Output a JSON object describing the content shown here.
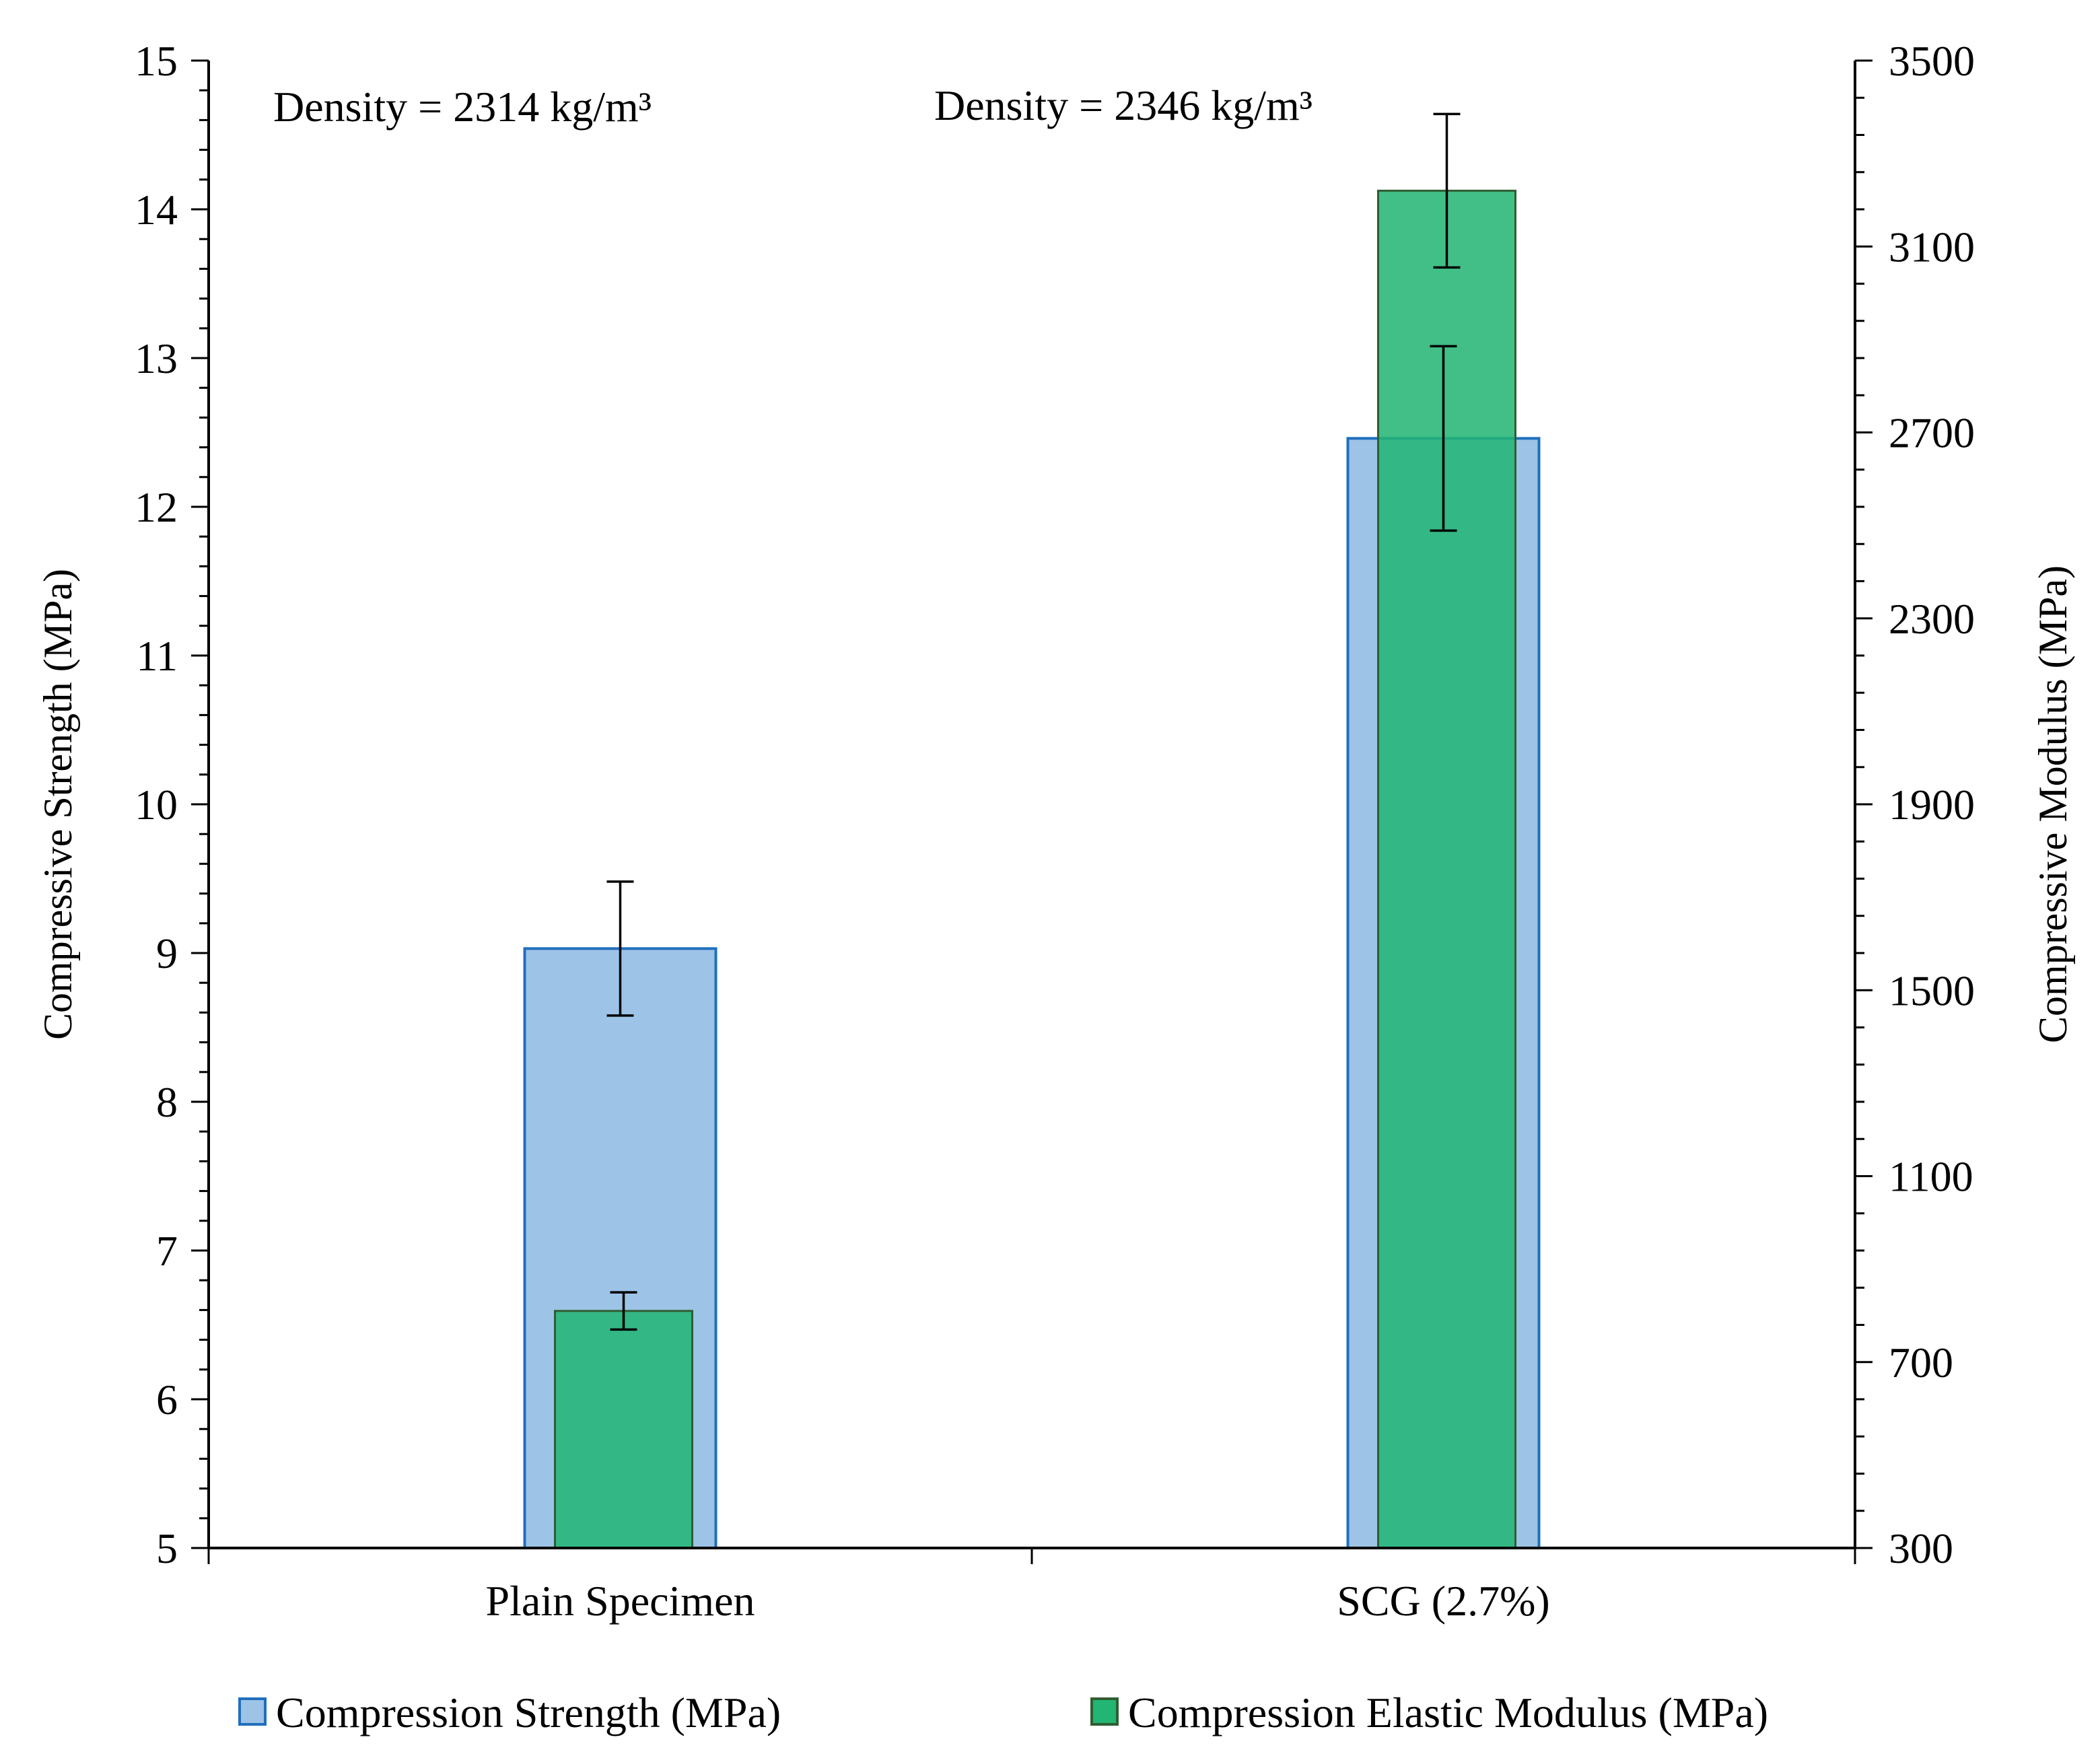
{
  "chart_data": {
    "type": "bar",
    "categories": [
      "Plain Specimen",
      "SCG (2.7%)"
    ],
    "y_left": {
      "label": "Compressive Strength (MPa)",
      "min": 5,
      "max": 15,
      "major_step": 1,
      "minor_step": 0.2,
      "tick_labels": [
        "5",
        "6",
        "7",
        "8",
        "9",
        "10",
        "11",
        "12",
        "13",
        "14",
        "15"
      ]
    },
    "y_right": {
      "label": "Compressive Modulus (MPa)",
      "min": 300,
      "max": 3500,
      "major_step": 400,
      "minor_step": 80,
      "tick_labels": [
        "300",
        "700",
        "1100",
        "1500",
        "1900",
        "2300",
        "2700",
        "3100",
        "3500"
      ]
    },
    "series": [
      {
        "name": "Compression Strength (MPa)",
        "axis": "left",
        "values": [
          9.03,
          12.46
        ],
        "error": [
          0.45,
          0.62
        ],
        "fill": "#9dc3e6",
        "stroke": "#1f6fbd"
      },
      {
        "name": "Compression Elastic Modulus (MPa)",
        "axis": "right",
        "values": [
          810,
          3220
        ],
        "error": [
          40,
          165
        ],
        "fill": "#22b573",
        "stroke": "#2e5e32"
      }
    ],
    "annotations": [
      "Density = 2314 kg/m³",
      "Density = 2346 kg/m³"
    ],
    "legend_position": "bottom",
    "grid": false
  }
}
